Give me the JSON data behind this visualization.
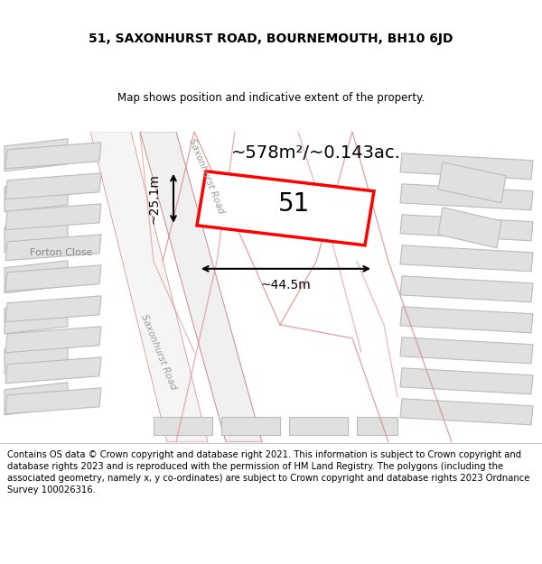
{
  "title": "51, SAXONHURST ROAD, BOURNEMOUTH, BH10 6JD",
  "subtitle": "Map shows position and indicative extent of the property.",
  "footer": "Contains OS data © Crown copyright and database right 2021. This information is subject to Crown copyright and database rights 2023 and is reproduced with the permission of HM Land Registry. The polygons (including the associated geometry, namely x, y co-ordinates) are subject to Crown copyright and database rights 2023 Ordnance Survey 100026316.",
  "map_bg": "#f2f2f2",
  "building_fill": "#e0e0e0",
  "building_stroke": "#bbbbbb",
  "road_fill": "#ffffff",
  "road_stroke": "#d08888",
  "highlight_fill": "#ffffff",
  "highlight_stroke": "#ff0000",
  "highlight_lw": 2.5,
  "area_text": "~578m²/~0.143ac.",
  "label_text": "51",
  "dim_width": "~44.5m",
  "dim_height": "~25.1m",
  "road_label_upper": "Saxonhurst Road",
  "road_label_lower": "Saxonhurst Road",
  "forton_label": "Forton Close",
  "title_fontsize": 10,
  "subtitle_fontsize": 8.5,
  "footer_fontsize": 7.2
}
